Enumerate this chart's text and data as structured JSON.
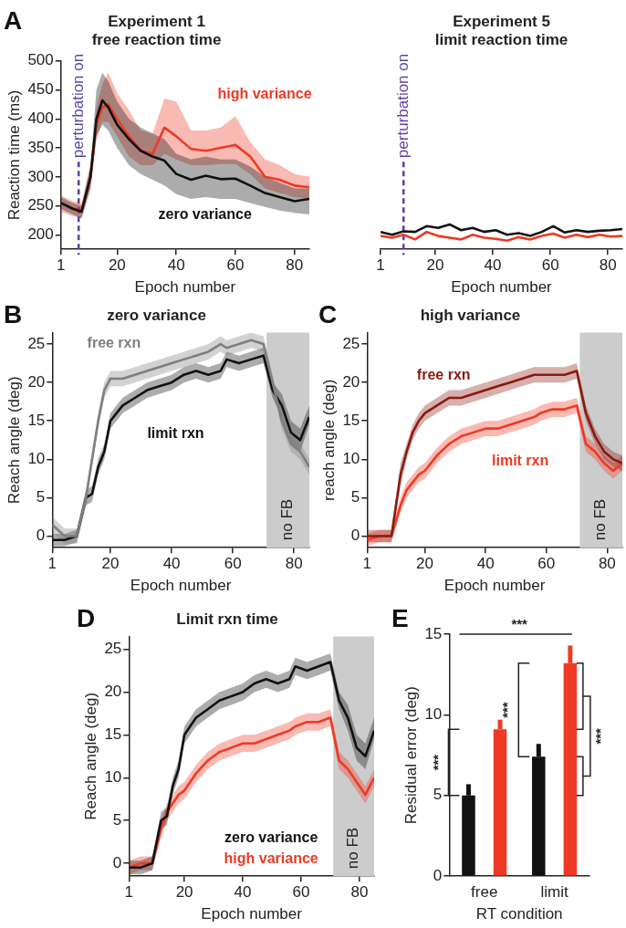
{
  "chart_data": [
    {
      "type": "line",
      "title": "Experiment 1",
      "subtitle": "free reaction time",
      "xlabel": "Epoch number",
      "ylabel": "Reaction time (ms)",
      "annotations": [
        "A"
      ],
      "x": [
        1,
        5,
        8,
        11,
        13,
        15,
        17,
        20,
        24,
        28,
        32,
        36,
        40,
        45,
        50,
        55,
        60,
        65,
        70,
        75,
        80,
        85
      ],
      "xlim": [
        1,
        85
      ],
      "xticks": [
        1,
        20,
        40,
        60,
        80
      ],
      "ylim": [
        175,
        500
      ],
      "yticks": [
        200,
        250,
        300,
        350,
        400,
        450,
        500
      ],
      "ref_lines": [
        {
          "axis": "x",
          "value": 7,
          "label": "perturbation on",
          "color": "#5b3fa8",
          "line_style": "dashed"
        }
      ],
      "series": [
        {
          "name": "zero variance",
          "color": "#111111",
          "values": [
            255,
            245,
            240,
            300,
            400,
            432,
            420,
            390,
            365,
            345,
            335,
            328,
            305,
            295,
            302,
            296,
            297,
            285,
            272,
            265,
            258,
            262
          ],
          "lower": [
            245,
            235,
            228,
            280,
            370,
            390,
            380,
            350,
            320,
            305,
            295,
            285,
            270,
            262,
            265,
            262,
            262,
            255,
            248,
            242,
            238,
            235
          ],
          "upper": [
            265,
            255,
            250,
            320,
            450,
            480,
            465,
            430,
            400,
            385,
            375,
            365,
            340,
            330,
            335,
            330,
            330,
            318,
            300,
            290,
            280,
            280
          ]
        },
        {
          "name": "high variance",
          "color": "#ee3a24",
          "values": [
            255,
            245,
            242,
            300,
            390,
            420,
            425,
            400,
            370,
            345,
            340,
            385,
            370,
            348,
            345,
            350,
            355,
            335,
            300,
            295,
            285,
            282
          ],
          "lower": [
            240,
            232,
            230,
            280,
            365,
            395,
            395,
            370,
            335,
            320,
            320,
            340,
            330,
            320,
            320,
            322,
            322,
            305,
            280,
            272,
            265,
            262
          ],
          "upper": [
            268,
            258,
            255,
            320,
            420,
            460,
            480,
            445,
            415,
            380,
            375,
            435,
            430,
            380,
            380,
            385,
            405,
            360,
            330,
            320,
            305,
            300
          ]
        }
      ]
    },
    {
      "type": "line",
      "title": "Experiment 5",
      "subtitle": "limit reaction time",
      "xlabel": "Epoch number",
      "x": [
        1,
        5,
        9,
        13,
        17,
        21,
        25,
        29,
        33,
        37,
        41,
        45,
        49,
        53,
        57,
        61,
        65,
        69,
        73,
        77,
        81,
        85
      ],
      "xlim": [
        1,
        85
      ],
      "xticks": [
        1,
        20,
        40,
        60,
        80
      ],
      "ylim": [
        175,
        500
      ],
      "tick_labels": "x",
      "ref_lines": [
        {
          "axis": "x",
          "value": 9,
          "label": "perturbation on",
          "color": "#5b3fa8",
          "line_style": "dashed"
        }
      ],
      "series": [
        {
          "color": "#ee3a24",
          "values": [
            198,
            195,
            200,
            192,
            205,
            198,
            195,
            192,
            200,
            195,
            193,
            190,
            196,
            192,
            198,
            202,
            195,
            200,
            196,
            200,
            197,
            198
          ]
        },
        {
          "color": "#111111",
          "values": [
            205,
            200,
            206,
            205,
            215,
            212,
            218,
            208,
            212,
            205,
            208,
            200,
            203,
            198,
            205,
            215,
            204,
            208,
            205,
            207,
            208,
            210
          ]
        }
      ]
    },
    {
      "type": "line",
      "title": "zero variance",
      "xlabel": "Epoch number",
      "ylabel": "Reach angle (deg)",
      "annotations": [
        "B"
      ],
      "x": [
        1,
        5,
        9,
        12,
        14,
        16,
        18,
        20,
        24,
        28,
        32,
        36,
        40,
        44,
        48,
        52,
        56,
        58,
        62,
        66,
        70,
        73,
        76,
        79,
        82,
        85
      ],
      "xlim": [
        1,
        85
      ],
      "xticks": [
        1,
        20,
        40,
        60,
        80
      ],
      "ylim": [
        -1.5,
        26.5
      ],
      "yticks": [
        0,
        5,
        10,
        15,
        20,
        25
      ],
      "bands": [
        {
          "axis": "x",
          "from": 71,
          "to": 85,
          "label": "no FB",
          "color": "#cccccc"
        }
      ],
      "series": [
        {
          "name": "free rxn",
          "color": "#7f7f7f",
          "values": [
            1.5,
            0,
            0,
            5,
            10,
            15,
            19,
            20.5,
            20.5,
            21,
            21.5,
            22,
            22.5,
            23,
            23.5,
            24,
            25,
            24.5,
            25,
            25.5,
            25,
            20,
            15,
            12,
            11,
            9
          ],
          "lower": [
            0.5,
            -1,
            -1,
            4,
            9,
            14,
            18,
            19.5,
            19.5,
            20,
            20.5,
            21,
            21.5,
            22,
            22.5,
            23,
            24,
            23.5,
            24,
            24.5,
            24,
            19,
            14,
            11,
            10,
            8
          ],
          "upper": [
            2.5,
            1,
            1,
            6,
            11,
            16,
            20,
            21.5,
            21.5,
            22,
            22.5,
            23,
            23.5,
            24,
            24.5,
            25,
            26,
            25.5,
            26,
            26.5,
            26,
            21,
            16,
            13,
            12,
            10
          ]
        },
        {
          "name": "limit rxn",
          "color": "#111111",
          "values": [
            -0.5,
            -0.5,
            0,
            5,
            5.5,
            9,
            11,
            15,
            17,
            18,
            19,
            19.5,
            20,
            21,
            21.5,
            21,
            21.5,
            23,
            22.5,
            23,
            23.5,
            19,
            17,
            13.5,
            12.5,
            15.5
          ],
          "lower": [
            -1.3,
            -1.3,
            -0.8,
            4,
            4.5,
            8,
            10,
            14,
            16,
            17,
            18,
            18.5,
            19,
            20,
            20.5,
            20,
            20.5,
            22,
            21.5,
            22,
            22.5,
            18,
            15.5,
            12,
            11,
            14.5
          ],
          "upper": [
            0.3,
            0.3,
            0.8,
            6,
            6.5,
            10,
            12,
            16,
            18,
            19,
            20,
            20.5,
            21,
            22,
            22.5,
            22,
            22.5,
            24,
            23.5,
            24,
            24.5,
            20,
            18.5,
            15,
            14,
            17
          ]
        }
      ]
    },
    {
      "type": "line",
      "title": "high variance",
      "xlabel": "Epoch number",
      "ylabel": "reach angle (deg)",
      "annotations": [
        "C"
      ],
      "x": [
        1,
        5,
        9,
        12,
        14,
        16,
        18,
        20,
        24,
        28,
        32,
        36,
        40,
        44,
        48,
        52,
        56,
        58,
        62,
        66,
        70,
        73,
        76,
        79,
        82,
        85
      ],
      "xlim": [
        1,
        85
      ],
      "xticks": [
        1,
        20,
        40,
        60,
        80
      ],
      "ylim": [
        -1.5,
        26.5
      ],
      "yticks": [
        0,
        5,
        10,
        15,
        20,
        25
      ],
      "bands": [
        {
          "axis": "x",
          "from": 71,
          "to": 85,
          "label": "no FB",
          "color": "#cccccc"
        }
      ],
      "series": [
        {
          "name": "free rxn",
          "color": "#8b1a10",
          "values": [
            0,
            0,
            0,
            8,
            11,
            13.5,
            15,
            16,
            17,
            18,
            18,
            18.5,
            19,
            19.5,
            20,
            20.5,
            21,
            21,
            21,
            21,
            21.5,
            16,
            13,
            11,
            10,
            9.5
          ],
          "lower": [
            -0.8,
            -0.8,
            -0.8,
            6.5,
            10,
            12.5,
            14,
            15,
            16,
            17,
            17,
            17.5,
            18,
            18.5,
            19,
            19.5,
            20,
            20,
            20,
            20,
            20.5,
            15,
            12,
            10,
            9,
            8.5
          ],
          "upper": [
            0.8,
            0.8,
            0.8,
            9.5,
            12,
            14.5,
            16,
            17,
            18,
            19,
            19,
            19.5,
            20,
            20.5,
            21,
            21.5,
            22,
            22,
            22,
            22,
            22.5,
            17,
            14,
            12,
            11,
            10.5
          ]
        },
        {
          "name": "limit rxn",
          "color": "#ee3a24",
          "values": [
            -0.5,
            0,
            0,
            4,
            6,
            7,
            8,
            8.5,
            10.5,
            12,
            13,
            13.5,
            14,
            14,
            14.5,
            15,
            15.5,
            16,
            16.5,
            16.5,
            17,
            12,
            11,
            9.5,
            8.5,
            9.5
          ],
          "lower": [
            -1.3,
            -0.8,
            -0.8,
            3,
            5,
            6,
            7,
            7.5,
            9.5,
            11,
            12,
            12.5,
            13,
            13,
            13.5,
            14,
            14.5,
            15,
            15.5,
            15.5,
            16,
            11,
            10,
            8.5,
            7.5,
            8.5
          ],
          "upper": [
            0.3,
            0.8,
            0.8,
            5,
            7,
            8,
            9,
            9.5,
            11.5,
            13,
            14,
            14.5,
            15,
            15,
            15.5,
            16,
            16.5,
            17,
            17.5,
            17.5,
            18,
            13,
            12,
            10.5,
            9.5,
            10.5
          ]
        }
      ]
    },
    {
      "type": "line",
      "title": "Limit rxn time",
      "xlabel": "Epoch number",
      "ylabel": "Reach angle (deg)",
      "annotations": [
        "D"
      ],
      "x": [
        1,
        5,
        9,
        12,
        14,
        16,
        18,
        20,
        24,
        28,
        32,
        36,
        40,
        44,
        48,
        52,
        56,
        58,
        62,
        66,
        70,
        73,
        76,
        79,
        82,
        85
      ],
      "xlim": [
        1,
        85
      ],
      "xticks": [
        1,
        20,
        40,
        60,
        80
      ],
      "ylim": [
        -1.5,
        26.5
      ],
      "yticks": [
        0,
        5,
        10,
        15,
        20,
        25
      ],
      "bands": [
        {
          "axis": "x",
          "from": 71,
          "to": 85,
          "label": "no FB",
          "color": "#cccccc"
        }
      ],
      "series": [
        {
          "name": "zero variance",
          "color": "#111111",
          "values": [
            -0.5,
            -0.5,
            0,
            5,
            5.5,
            9,
            11,
            15,
            17,
            18,
            19,
            19.5,
            20,
            21,
            21.5,
            21,
            21.5,
            23,
            22.5,
            23,
            23.5,
            19,
            17,
            13.5,
            12.5,
            15.5
          ],
          "lower": [
            -1.3,
            -1.3,
            -0.8,
            4,
            4.5,
            8,
            10,
            14,
            16,
            17,
            18,
            18.5,
            19,
            20,
            20.5,
            20,
            20.5,
            22,
            21.5,
            22,
            22.5,
            18,
            15.5,
            12,
            11,
            14.5
          ],
          "upper": [
            0.3,
            0.3,
            0.8,
            6,
            6.5,
            10,
            12,
            16,
            18,
            19,
            20,
            20.5,
            21,
            22,
            22.5,
            22,
            22.5,
            24,
            23.5,
            24,
            24.5,
            20,
            18.5,
            15,
            14,
            17
          ]
        },
        {
          "name": "high variance",
          "color": "#ee3a24",
          "values": [
            -0.5,
            0,
            0,
            4,
            6,
            7,
            8,
            8.5,
            10.5,
            12,
            13,
            13.5,
            14,
            14,
            14.5,
            15,
            15.5,
            16,
            16.5,
            16.5,
            17,
            12,
            11,
            9.5,
            8,
            10
          ],
          "lower": [
            -1.3,
            -0.8,
            -0.8,
            3,
            5,
            6,
            7,
            7.5,
            9.5,
            11,
            12,
            12.5,
            13,
            13,
            13.5,
            14,
            14.5,
            15,
            15.5,
            15.5,
            16,
            11,
            10,
            8.5,
            7,
            9
          ],
          "upper": [
            0.3,
            0.8,
            0.8,
            5,
            7,
            8,
            9,
            9.5,
            11.5,
            13,
            14,
            14.5,
            15,
            15,
            15.5,
            16,
            16.5,
            17,
            17.5,
            17.5,
            18,
            13,
            12,
            10.5,
            9,
            11
          ]
        }
      ]
    },
    {
      "type": "bar",
      "xlabel": "RT condition",
      "ylabel": "Residual error (deg)",
      "annotations": [
        "E",
        "***",
        "***",
        "***",
        "***"
      ],
      "categories": [
        "free",
        "limit"
      ],
      "ylim": [
        0,
        15
      ],
      "yticks": [
        0,
        5,
        10,
        15
      ],
      "series": [
        {
          "color": "#111111",
          "values": [
            5.0,
            7.4
          ],
          "errors": [
            [
              5.0,
              5.7
            ],
            [
              7.4,
              8.2
            ]
          ]
        },
        {
          "color": "#ee3a24",
          "values": [
            9.1,
            13.2
          ],
          "errors": [
            [
              9.1,
              9.7
            ],
            [
              13.2,
              14.3
            ]
          ]
        }
      ]
    }
  ]
}
